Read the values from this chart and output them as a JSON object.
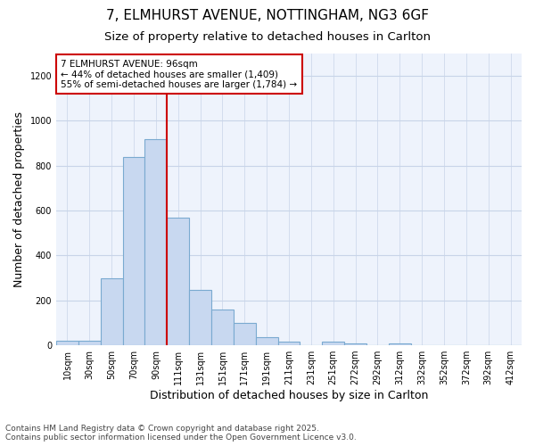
{
  "title_line1": "7, ELMHURST AVENUE, NOTTINGHAM, NG3 6GF",
  "title_line2": "Size of property relative to detached houses in Carlton",
  "xlabel": "Distribution of detached houses by size in Carlton",
  "ylabel": "Number of detached properties",
  "categories": [
    "10sqm",
    "30sqm",
    "50sqm",
    "70sqm",
    "90sqm",
    "111sqm",
    "131sqm",
    "151sqm",
    "171sqm",
    "191sqm",
    "211sqm",
    "231sqm",
    "251sqm",
    "272sqm",
    "292sqm",
    "312sqm",
    "332sqm",
    "352sqm",
    "372sqm",
    "392sqm",
    "412sqm"
  ],
  "values": [
    20,
    20,
    300,
    840,
    920,
    570,
    245,
    160,
    100,
    35,
    15,
    0,
    15,
    10,
    0,
    10,
    0,
    0,
    0,
    0,
    0
  ],
  "bar_color": "#c8d8f0",
  "bar_edge_color": "#7aaad0",
  "bar_width": 1.0,
  "vline_x": 4.5,
  "vline_color": "#cc0000",
  "annotation_text": "7 ELMHURST AVENUE: 96sqm\n← 44% of detached houses are smaller (1,409)\n55% of semi-detached houses are larger (1,784) →",
  "annotation_box_color": "#cc0000",
  "annotation_bg": "#ffffff",
  "ylim": [
    0,
    1300
  ],
  "yticks": [
    0,
    200,
    400,
    600,
    800,
    1000,
    1200
  ],
  "grid_color": "#c8d4e8",
  "bg_color": "#ffffff",
  "plot_bg_color": "#eef3fc",
  "footer_text": "Contains HM Land Registry data © Crown copyright and database right 2025.\nContains public sector information licensed under the Open Government Licence v3.0.",
  "title_fontsize": 11,
  "subtitle_fontsize": 9.5,
  "axis_label_fontsize": 9,
  "tick_fontsize": 7,
  "annotation_fontsize": 7.5,
  "footer_fontsize": 6.5
}
